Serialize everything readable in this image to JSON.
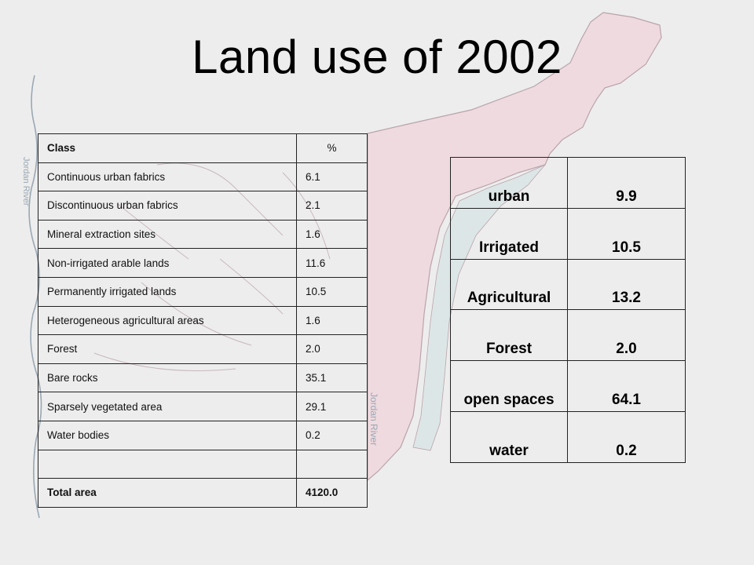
{
  "title": "Land use of 2002",
  "class_table": {
    "header": {
      "class": "Class",
      "percent": "%"
    },
    "rows": [
      {
        "class": "Continuous urban fabrics",
        "percent": "6.1"
      },
      {
        "class": "Discontinuous urban fabrics",
        "percent": "2.1"
      },
      {
        "class": "Mineral extraction sites",
        "percent": "1.6"
      },
      {
        "class": "Non-irrigated arable lands",
        "percent": "11.6"
      },
      {
        "class": "Permanently irrigated lands",
        "percent": "10.5"
      },
      {
        "class": "Heterogeneous agricultural areas",
        "percent": "1.6"
      },
      {
        "class": "Forest",
        "percent": "2.0"
      },
      {
        "class": "Bare rocks",
        "percent": "35.1"
      },
      {
        "class": "Sparsely vegetated area",
        "percent": "29.1"
      },
      {
        "class": "Water bodies",
        "percent": "0.2"
      },
      {
        "class": "",
        "percent": ""
      }
    ],
    "total": {
      "class": "Total area",
      "percent": "4120.0"
    }
  },
  "summary_table": {
    "rows": [
      {
        "label": "urban",
        "value": "9.9"
      },
      {
        "label": "Irrigated",
        "value": "10.5"
      },
      {
        "label": "Agricultural",
        "value": "13.2"
      },
      {
        "label": "Forest",
        "value": "2.0"
      },
      {
        "label": "open spaces",
        "value": "64.1"
      },
      {
        "label": "water",
        "value": "0.2"
      }
    ]
  },
  "map_labels": {
    "river_left": "Jordan River",
    "river_right": "Jordan River"
  },
  "colors": {
    "background": "#ededed",
    "basin_pink": "#efdadf",
    "basin_blue": "#dde6e6",
    "boundary": "#b9a4ab",
    "river": "#9aa8b4"
  }
}
